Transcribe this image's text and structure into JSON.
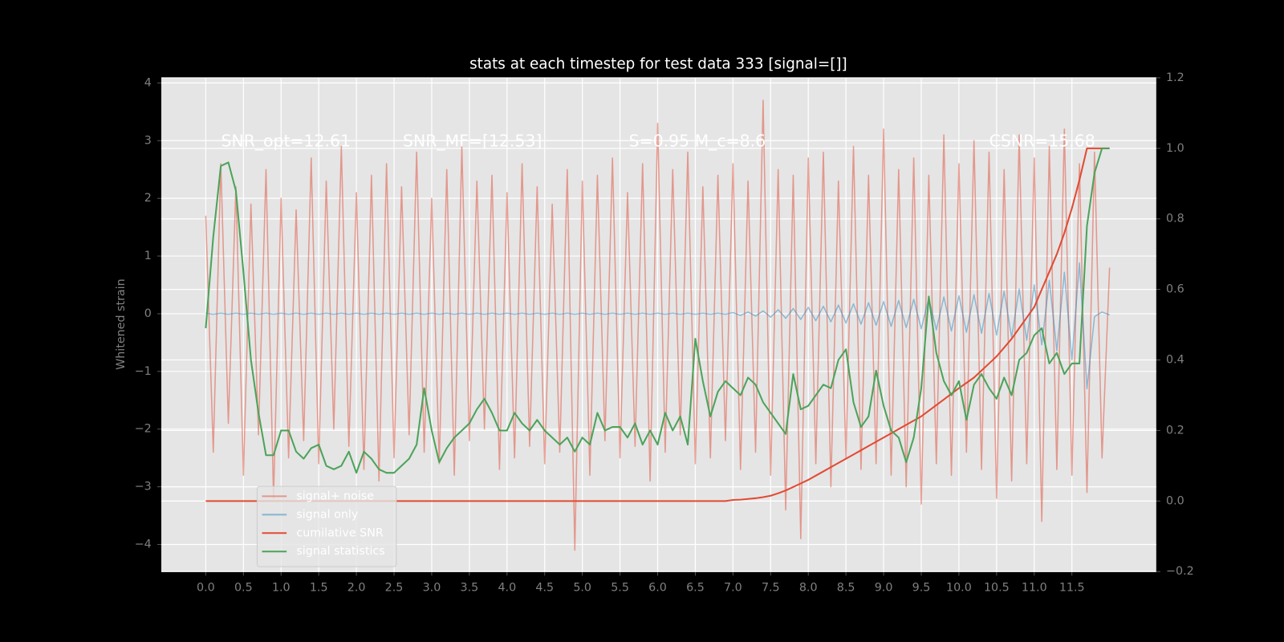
{
  "chart_data": {
    "type": "line",
    "title": "stats at each timestep for test data 333 [signal=[]]",
    "y_label": "Whitened strain",
    "annotations": [
      "SNR_opt=12.61",
      "SNR_MF=[12.53]",
      "S=0.95  M_c=8.6",
      "CSNR=15.68"
    ],
    "x": [
      0,
      0.1,
      0.2,
      0.3,
      0.4,
      0.5,
      0.6,
      0.7,
      0.8,
      0.9,
      1,
      1.1,
      1.2,
      1.3,
      1.4,
      1.5,
      1.6,
      1.7,
      1.8,
      1.9,
      2,
      2.1,
      2.2,
      2.3,
      2.4,
      2.5,
      2.6,
      2.7,
      2.8,
      2.9,
      3,
      3.1,
      3.2,
      3.3,
      3.4,
      3.5,
      3.6,
      3.7,
      3.8,
      3.9,
      4,
      4.1,
      4.2,
      4.3,
      4.4,
      4.5,
      4.6,
      4.7,
      4.8,
      4.9,
      5,
      5.1,
      5.2,
      5.3,
      5.4,
      5.5,
      5.6,
      5.7,
      5.8,
      5.9,
      6,
      6.1,
      6.2,
      6.3,
      6.4,
      6.5,
      6.6,
      6.7,
      6.8,
      6.9,
      7,
      7.1,
      7.2,
      7.3,
      7.4,
      7.5,
      7.6,
      7.7,
      7.8,
      7.9,
      8,
      8.1,
      8.2,
      8.3,
      8.4,
      8.5,
      8.6,
      8.7,
      8.8,
      8.9,
      9,
      9.1,
      9.2,
      9.3,
      9.4,
      9.5,
      9.6,
      9.7,
      9.8,
      9.9,
      10,
      10.1,
      10.2,
      10.3,
      10.4,
      10.5,
      10.6,
      10.7,
      10.8,
      10.9,
      11,
      11.1,
      11.2,
      11.3,
      11.4,
      11.5,
      11.6,
      11.7,
      11.8,
      11.9,
      12
    ],
    "series": [
      {
        "name": "signal+ noise",
        "color": "#e24a33",
        "opacity": 0.5,
        "values": [
          1.7,
          -2.4,
          2.6,
          -1.9,
          2.2,
          -2.8,
          1.9,
          -2.1,
          2.5,
          -3.2,
          2.0,
          -2.5,
          1.8,
          -2.2,
          2.7,
          -2.6,
          2.3,
          -2.0,
          2.9,
          -2.3,
          2.1,
          -2.7,
          2.4,
          -2.9,
          2.6,
          -2.5,
          2.2,
          -2.1,
          2.8,
          -2.4,
          2.0,
          -2.6,
          2.5,
          -2.8,
          2.9,
          -2.2,
          2.3,
          -2.0,
          2.4,
          -2.7,
          2.1,
          -2.5,
          2.6,
          -2.3,
          2.2,
          -2.6,
          1.9,
          -2.4,
          2.5,
          -4.1,
          2.3,
          -2.8,
          2.4,
          -2.2,
          2.7,
          -2.5,
          2.1,
          -2.3,
          2.6,
          -2.9,
          3.3,
          -2.4,
          2.5,
          -2.1,
          2.8,
          -2.6,
          2.2,
          -2.5,
          2.4,
          -2.2,
          2.6,
          -2.7,
          2.3,
          -2.4,
          3.7,
          -2.8,
          2.5,
          -3.4,
          2.4,
          -3.9,
          2.7,
          -2.6,
          2.8,
          -3.0,
          2.3,
          -2.5,
          2.9,
          -2.7,
          2.4,
          -2.6,
          3.2,
          -2.8,
          2.5,
          -3.0,
          2.7,
          -3.3,
          2.4,
          -2.6,
          3.1,
          -2.8,
          2.6,
          -2.4,
          3.0,
          -2.7,
          2.8,
          -3.2,
          2.5,
          -2.9,
          3.1,
          -2.6,
          2.7,
          -3.6,
          2.9,
          -2.7,
          3.2,
          -2.8,
          2.6,
          -3.1,
          2.8,
          -2.5,
          0.8
        ]
      },
      {
        "name": "signal only",
        "color": "#348abd",
        "opacity": 0.5,
        "values": [
          0.01,
          -0.01,
          0.01,
          -0.01,
          0.01,
          -0.01,
          0.01,
          -0.01,
          0.01,
          -0.01,
          0.01,
          -0.01,
          0.01,
          -0.01,
          0.01,
          -0.01,
          0.01,
          -0.01,
          0.01,
          -0.01,
          0.01,
          -0.01,
          0.01,
          -0.01,
          0.01,
          -0.01,
          0.01,
          -0.01,
          0.01,
          -0.01,
          0.01,
          -0.01,
          0.01,
          -0.01,
          0.01,
          -0.01,
          0.01,
          -0.01,
          0.01,
          -0.01,
          0.01,
          -0.01,
          0.01,
          -0.01,
          0.01,
          -0.01,
          0.01,
          -0.01,
          0.01,
          -0.01,
          0.01,
          -0.01,
          0.01,
          -0.01,
          0.01,
          -0.01,
          0.01,
          -0.01,
          0.01,
          -0.01,
          0.01,
          -0.01,
          0.01,
          -0.01,
          0.01,
          -0.01,
          0.01,
          -0.01,
          0.01,
          -0.01,
          0.02,
          -0.03,
          0.03,
          -0.04,
          0.05,
          -0.06,
          0.07,
          -0.08,
          0.09,
          -0.1,
          0.11,
          -0.12,
          0.13,
          -0.14,
          0.15,
          -0.16,
          0.17,
          -0.18,
          0.19,
          -0.2,
          0.21,
          -0.22,
          0.23,
          -0.24,
          0.25,
          -0.26,
          0.27,
          -0.28,
          0.29,
          -0.3,
          0.31,
          -0.32,
          0.33,
          -0.34,
          0.35,
          -0.37,
          0.39,
          -0.41,
          0.43,
          -0.46,
          0.5,
          -0.54,
          0.58,
          -0.64,
          0.72,
          -0.8,
          0.88,
          -1.3,
          -0.05,
          0.03,
          -0.02
        ]
      },
      {
        "name": "cumilative SNR",
        "color": "#e24a33",
        "axis": "y2",
        "values": [
          0,
          0,
          0,
          0,
          0,
          0,
          0,
          0,
          0,
          0,
          0,
          0,
          0,
          0,
          0,
          0,
          0,
          0,
          0,
          0,
          0,
          0,
          0,
          0,
          0,
          0,
          0,
          0,
          0,
          0,
          0,
          0,
          0,
          0,
          0,
          0,
          0,
          0,
          0,
          0,
          0,
          0,
          0,
          0,
          0,
          0,
          0,
          0,
          0,
          0,
          0,
          0,
          0,
          0,
          0,
          0,
          0,
          0,
          0,
          0,
          0,
          0,
          0,
          0,
          0,
          0,
          0,
          0,
          0,
          0,
          0.003,
          0.004,
          0.006,
          0.008,
          0.011,
          0.015,
          0.022,
          0.03,
          0.04,
          0.05,
          0.06,
          0.072,
          0.084,
          0.096,
          0.108,
          0.12,
          0.132,
          0.144,
          0.156,
          0.168,
          0.18,
          0.192,
          0.204,
          0.216,
          0.228,
          0.24,
          0.256,
          0.272,
          0.288,
          0.304,
          0.32,
          0.335,
          0.35,
          0.37,
          0.39,
          0.41,
          0.435,
          0.46,
          0.49,
          0.52,
          0.55,
          0.6,
          0.65,
          0.7,
          0.76,
          0.83,
          0.91,
          1.0,
          1.0,
          1.0,
          1.0
        ]
      },
      {
        "name": "signal statistics",
        "color": "#4ca35a",
        "axis": "y2",
        "values": [
          0.49,
          0.75,
          0.95,
          0.96,
          0.88,
          0.65,
          0.4,
          0.25,
          0.13,
          0.13,
          0.2,
          0.2,
          0.14,
          0.12,
          0.15,
          0.16,
          0.1,
          0.09,
          0.1,
          0.14,
          0.08,
          0.14,
          0.12,
          0.09,
          0.08,
          0.08,
          0.1,
          0.12,
          0.16,
          0.32,
          0.2,
          0.11,
          0.15,
          0.18,
          0.2,
          0.22,
          0.26,
          0.29,
          0.25,
          0.2,
          0.2,
          0.25,
          0.22,
          0.2,
          0.23,
          0.2,
          0.18,
          0.16,
          0.18,
          0.14,
          0.18,
          0.16,
          0.25,
          0.2,
          0.21,
          0.21,
          0.18,
          0.22,
          0.16,
          0.2,
          0.16,
          0.25,
          0.2,
          0.24,
          0.16,
          0.46,
          0.34,
          0.24,
          0.31,
          0.34,
          0.32,
          0.3,
          0.35,
          0.33,
          0.28,
          0.25,
          0.22,
          0.19,
          0.36,
          0.26,
          0.27,
          0.3,
          0.33,
          0.32,
          0.4,
          0.43,
          0.28,
          0.21,
          0.24,
          0.37,
          0.27,
          0.2,
          0.18,
          0.11,
          0.18,
          0.32,
          0.58,
          0.42,
          0.34,
          0.3,
          0.34,
          0.23,
          0.33,
          0.36,
          0.32,
          0.29,
          0.35,
          0.3,
          0.4,
          0.42,
          0.47,
          0.49,
          0.39,
          0.42,
          0.36,
          0.39,
          0.39,
          0.78,
          0.93,
          1.0,
          1.0
        ]
      }
    ],
    "xlim": [
      -0.59,
      12.62
    ],
    "xticks": [
      {
        "value": 0,
        "label": "0.0"
      },
      0.5,
      {
        "value": 1,
        "label": "1.0"
      },
      1.5,
      {
        "value": 2,
        "label": "2.0"
      },
      2.5,
      {
        "value": 3,
        "label": "3.0"
      },
      3.5,
      {
        "value": 4,
        "label": "4.0"
      },
      4.5,
      {
        "value": 5,
        "label": "5.0"
      },
      5.5,
      {
        "value": 6,
        "label": "6.0"
      },
      6.5,
      {
        "value": 7,
        "label": "7.0"
      },
      7.5,
      {
        "value": 8,
        "label": "8.0"
      },
      8.5,
      {
        "value": 9,
        "label": "9.0"
      },
      9.5,
      {
        "value": 10,
        "label": "10.0"
      },
      10.5,
      {
        "value": 11,
        "label": "11.0"
      },
      11.5
    ],
    "ylim": [
      -4.47,
      4.09
    ],
    "yticks": [
      {
        "value": -4,
        "label": "−4"
      },
      {
        "value": -3,
        "label": "−3"
      },
      {
        "value": -2,
        "label": "−2"
      },
      {
        "value": -1,
        "label": "−1"
      },
      0,
      1,
      2,
      3,
      4
    ],
    "y2lim": [
      -0.2,
      1.2
    ],
    "y2ticks": [
      {
        "value": -0.2,
        "label": "−0.2"
      },
      {
        "value": 0,
        "label": "0.0"
      },
      0.2,
      0.4,
      0.6,
      0.8,
      {
        "value": 1,
        "label": "1.0"
      },
      1.2
    ],
    "grid": true,
    "legend_loc": "lower left"
  }
}
